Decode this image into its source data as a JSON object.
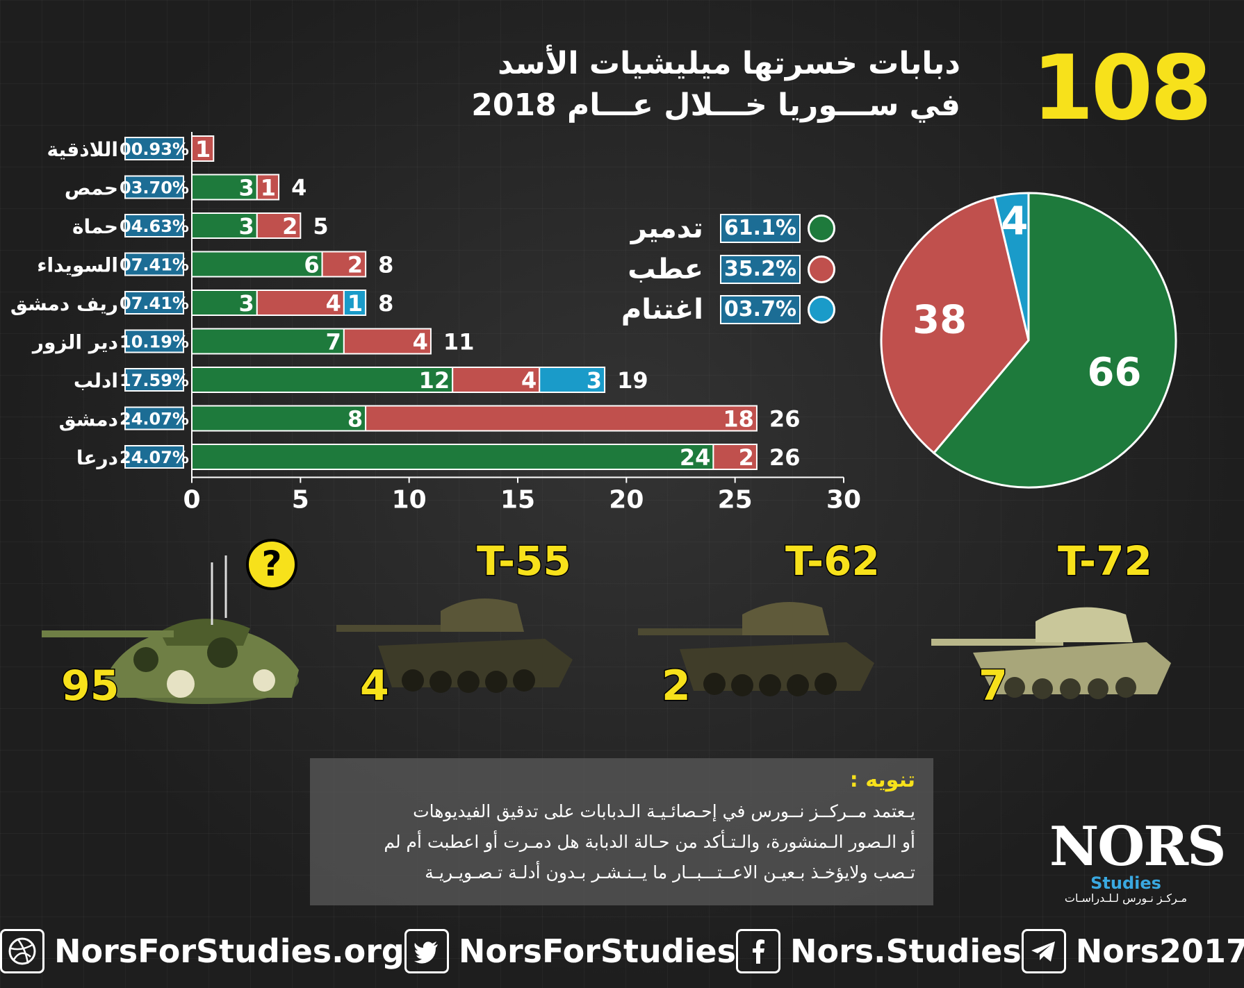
{
  "header": {
    "big_number": "108",
    "title_line1": "دبابات خسرتها ميليشيات الأسد",
    "title_line2": "في ســـوريا خـــلال عـــام 2018"
  },
  "colors": {
    "destroyed": "#1e7a3c",
    "damaged": "#c0504d",
    "captured": "#1a9bc9",
    "badge": "#1c6d95",
    "accent": "#f7e11b"
  },
  "chart_data": [
    {
      "type": "bar",
      "orientation": "horizontal",
      "stacked": true,
      "categories": [
        "اللاذقية",
        "حمص",
        "حماة",
        "السويداء",
        "ريف دمشق",
        "دير الزور",
        "ادلب",
        "دمشق",
        "درعا"
      ],
      "percentages": [
        "00.93%",
        "03.70%",
        "04.63%",
        "07.41%",
        "07.41%",
        "10.19%",
        "17.59%",
        "24.07%",
        "24.07%"
      ],
      "totals": [
        null,
        4,
        5,
        8,
        8,
        11,
        19,
        26,
        26
      ],
      "series": [
        {
          "name": "تدمير",
          "values": [
            0,
            3,
            3,
            6,
            3,
            7,
            12,
            8,
            24
          ]
        },
        {
          "name": "عطب",
          "values": [
            1,
            1,
            2,
            2,
            4,
            4,
            4,
            18,
            2
          ]
        },
        {
          "name": "اغتنام",
          "values": [
            0,
            0,
            0,
            0,
            1,
            0,
            3,
            0,
            0
          ]
        }
      ],
      "xlim": [
        0,
        30
      ],
      "x_ticks": [
        "0",
        "5",
        "10",
        "15",
        "20",
        "25",
        "30"
      ]
    },
    {
      "type": "pie",
      "slices": [
        {
          "name": "تدمير",
          "value": 66,
          "percent": "61.1%"
        },
        {
          "name": "عطب",
          "value": 38,
          "percent": "35.2%"
        },
        {
          "name": "اغتنام",
          "value": 4,
          "percent": "03.7%"
        }
      ]
    }
  ],
  "tanks": [
    {
      "model": "?",
      "count": "95"
    },
    {
      "model": "T-55",
      "count": "4"
    },
    {
      "model": "T-62",
      "count": "2"
    },
    {
      "model": "T-72",
      "count": "7"
    }
  ],
  "note": {
    "title": "تنويه :",
    "line1": "يـعتمد مــركــز نــورس في إحـصائـيـة الـدبابات على تدقيق الفيديوهات",
    "line2": "أو الـصور الـمنشورة، والـتـأكد من حـالة الدبابة هل دمـرت أو اعطبت أم لم",
    "line3": "تـصب ولايؤخـذ بـعيـن الاعــتـــبــار ما يــنـشـر بـدون أدلـة تـصـويـريـة"
  },
  "logo": {
    "main": "NORS",
    "sub": "Studies",
    "ar": "مـركـز نـورس لـلـدراسـات"
  },
  "footer": {
    "website": "NorsForStudies.org",
    "twitter": "NorsForStudies",
    "facebook": "Nors.Studies",
    "telegram": "Nors2017",
    "icons": [
      "dribbble-icon",
      "twitter-icon",
      "facebook-icon",
      "telegram-icon"
    ]
  }
}
